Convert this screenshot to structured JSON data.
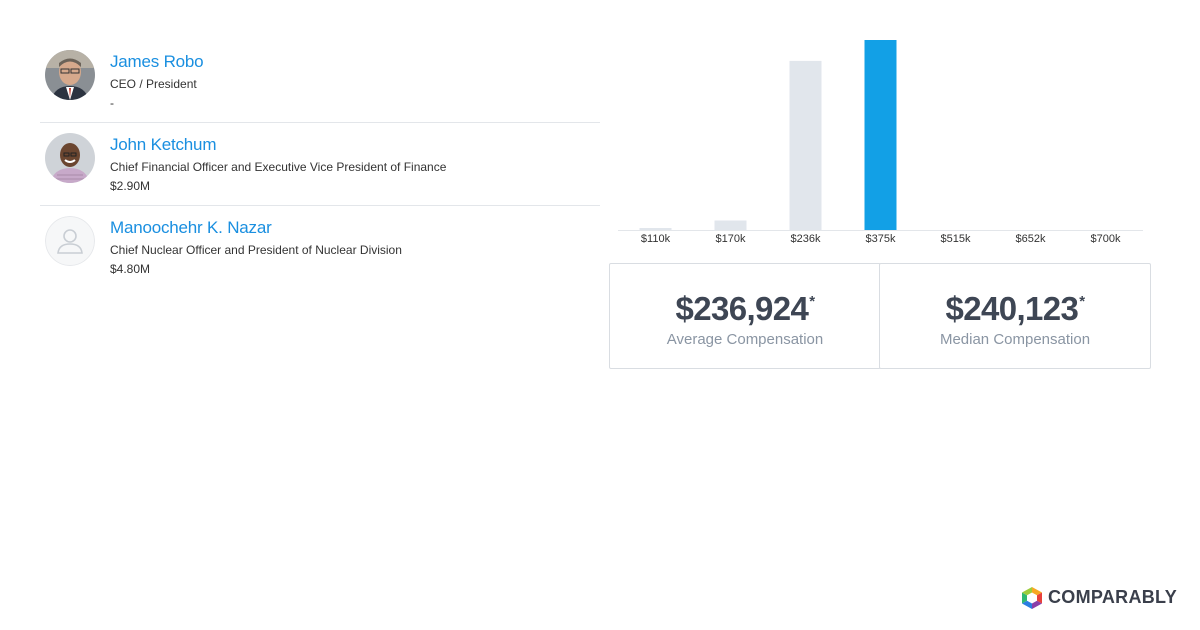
{
  "executives": [
    {
      "name": "James Robo",
      "title": "CEO / President",
      "compensation": "-",
      "avatar": "photo-avatar"
    },
    {
      "name": "John Ketchum",
      "title": "Chief Financial Officer and Executive Vice President of Finance",
      "compensation": "$2.90M",
      "avatar": "photo-avatar"
    },
    {
      "name": "Manoochehr K. Nazar",
      "title": "Chief Nuclear Officer and President of Nuclear Division",
      "compensation": "$4.80M",
      "avatar": "placeholder-user-icon"
    }
  ],
  "chart_data": {
    "type": "bar",
    "categories": [
      "$110k",
      "$170k",
      "$236k",
      "$375k",
      "$515k",
      "$652k",
      "$700k"
    ],
    "values": [
      1,
      5,
      89,
      100,
      0,
      0,
      0
    ],
    "highlight_index": 3,
    "ylim": [
      0,
      100
    ],
    "colors": {
      "bar": "#e1e6ec",
      "highlight": "#12a0e6",
      "baseline": "#e3e6ea"
    }
  },
  "stats": {
    "average": {
      "value": "$236,924",
      "asterisk": "*",
      "label": "Average Compensation"
    },
    "median": {
      "value": "$240,123",
      "asterisk": "*",
      "label": "Median Compensation"
    }
  },
  "brand": {
    "name": "COMPARABLY"
  }
}
